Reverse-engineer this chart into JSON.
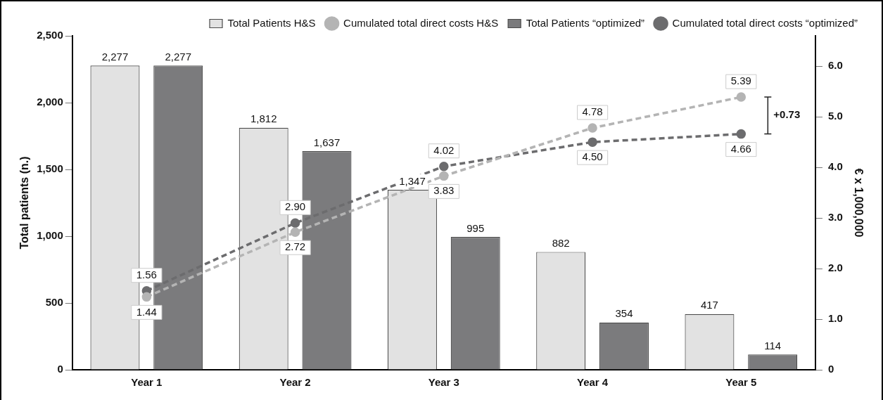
{
  "chart_data": {
    "type": "bar",
    "categories": [
      "Year 1",
      "Year 2",
      "Year 3",
      "Year 4",
      "Year 5"
    ],
    "ylabel": "Total patients (n.)",
    "y2label": "€ x 1,000,000",
    "ylim": [
      0,
      2500
    ],
    "yticks": [
      0,
      {
        "value": 500,
        "label": "500"
      },
      {
        "value": 1000,
        "label": "1,000"
      },
      {
        "value": 1500,
        "label": "1,500"
      },
      {
        "value": 2000,
        "label": "2,000"
      },
      {
        "value": 2500,
        "label": "2,500"
      }
    ],
    "y2lim": [
      0,
      6.6
    ],
    "y2ticks": [
      0,
      {
        "value": 1,
        "label": "1.0"
      },
      {
        "value": 2,
        "label": "2.0"
      },
      {
        "value": 3,
        "label": "3.0"
      },
      {
        "value": 4,
        "label": "4.0"
      },
      {
        "value": 5,
        "label": "5.0"
      },
      {
        "value": 6,
        "label": "6.0"
      }
    ],
    "grid": false,
    "legend": "top right",
    "marker": "circle",
    "line_style": "dashed",
    "annotations": [
      "+0.73"
    ],
    "series": [
      {
        "name": "Total Patients H&S",
        "color": "#e2e2e2",
        "values": [
          2277,
          1812,
          1347,
          882,
          417
        ],
        "value_labels": [
          "2,277",
          "1,812",
          "1,347",
          "882",
          "417"
        ]
      },
      {
        "name": "Total Patients “optimized”",
        "color": "#7b7b7d",
        "values": [
          2277,
          1637,
          995,
          354,
          114
        ],
        "value_labels": [
          "2,277",
          "1,637",
          "995",
          "354",
          "114"
        ]
      },
      {
        "name": "Cumulated total direct costs H&S",
        "type": "line",
        "axis": "y2",
        "color": "#b4b4b4",
        "values": [
          1.44,
          2.72,
          3.83,
          4.78,
          5.39
        ],
        "value_labels": [
          "1.44",
          "2.72",
          "3.83",
          "4.78",
          "5.39"
        ]
      },
      {
        "name": "Cumulated total direct costs “optimized”",
        "type": "line",
        "axis": "y2",
        "color": "#6c6c6e",
        "values": [
          1.56,
          2.9,
          4.02,
          4.5,
          4.66
        ],
        "value_labels": [
          "1.56",
          "2.90",
          "4.02",
          "4.50",
          "4.66"
        ]
      }
    ]
  }
}
